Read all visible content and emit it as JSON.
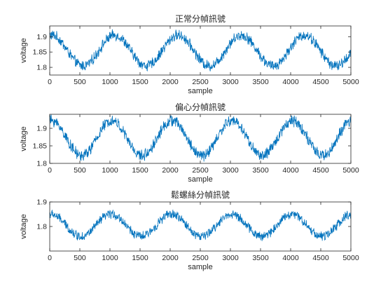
{
  "chart_data": [
    {
      "type": "line",
      "title": "正常分幀訊號",
      "xlabel": "sample",
      "ylabel": "voltage",
      "xlim": [
        0,
        5000
      ],
      "ylim": [
        1.775,
        1.935
      ],
      "xticks": [
        0,
        500,
        1000,
        1500,
        2000,
        2500,
        3000,
        3500,
        4000,
        4500,
        5000
      ],
      "yticks": [
        1.8,
        1.85,
        1.9
      ],
      "ytick_labels": [
        "1.8",
        "1.85",
        "1.9"
      ],
      "grid": false,
      "series": [
        {
          "color": "#0072bd",
          "mean": 1.855,
          "amplitude": 0.05,
          "period_samples": 1050,
          "first_peak_sample": 30,
          "noise_peak_to_peak": 0.03
        }
      ]
    },
    {
      "type": "line",
      "title": "偏心分幀訊號",
      "xlabel": "sample",
      "ylabel": "voltage",
      "xlim": [
        0,
        5000
      ],
      "ylim": [
        1.8,
        1.94
      ],
      "xticks": [
        0,
        500,
        1000,
        1500,
        2000,
        2500,
        3000,
        3500,
        4000,
        4500,
        5000
      ],
      "yticks": [
        1.8,
        1.85,
        1.9
      ],
      "ytick_labels": [
        "1.8",
        "1.85",
        "1.9"
      ],
      "grid": false,
      "series": [
        {
          "color": "#0072bd",
          "mean": 1.872,
          "amplitude": 0.05,
          "period_samples": 1000,
          "first_peak_sample": 30,
          "noise_peak_to_peak": 0.028
        }
      ]
    },
    {
      "type": "line",
      "title": "鬆螺絲分幀訊號",
      "xlabel": "sample",
      "ylabel": "voltage",
      "xlim": [
        0,
        5000
      ],
      "ylim": [
        1.7,
        1.9
      ],
      "xticks": [
        0,
        500,
        1000,
        1500,
        2000,
        2500,
        3000,
        3500,
        4000,
        4500,
        5000
      ],
      "yticks": [
        1.8,
        1.9
      ],
      "ytick_labels": [
        "1.8",
        "1.9"
      ],
      "grid": false,
      "series": [
        {
          "color": "#0072bd",
          "mean": 1.805,
          "amplitude": 0.045,
          "period_samples": 1000,
          "first_peak_sample": 20,
          "noise_peak_to_peak": 0.032
        }
      ]
    }
  ]
}
